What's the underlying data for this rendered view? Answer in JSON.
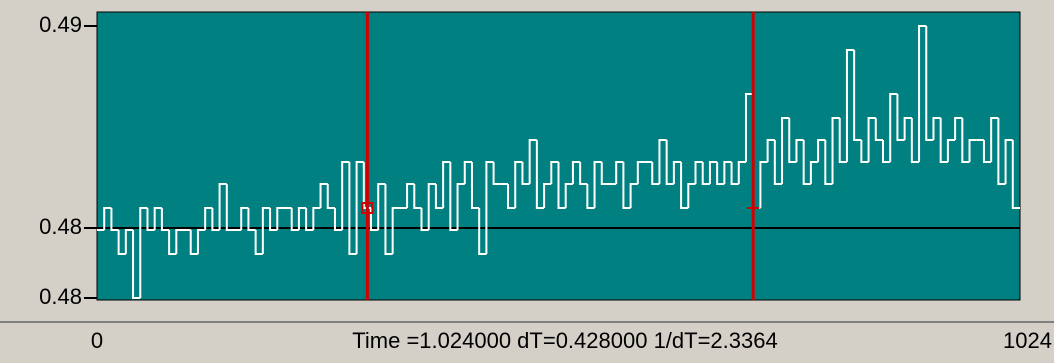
{
  "chart_data": {
    "type": "step",
    "status": "Time =1.024000 dT=0.428000  1/dT=2.3364",
    "series": [
      {
        "color": "#ffffff",
        "x": [
          0,
          8,
          16,
          24,
          32,
          40,
          48,
          56,
          64,
          72,
          80,
          88,
          96,
          104,
          112,
          120,
          128,
          136,
          144,
          152,
          160,
          168,
          176,
          184,
          192,
          200,
          208,
          216,
          224,
          232,
          240,
          248,
          256,
          264,
          272,
          280,
          288,
          296,
          304,
          312,
          320,
          328,
          336,
          344,
          352,
          360,
          368,
          376,
          384,
          392,
          400,
          408,
          416,
          424,
          432,
          440,
          448,
          456,
          464,
          472,
          480,
          488,
          496,
          504,
          512,
          520,
          528,
          536,
          544,
          552,
          560,
          568,
          576,
          584,
          592,
          600,
          608,
          616,
          624,
          632,
          640,
          648,
          656,
          664,
          672,
          680,
          688,
          696,
          704,
          712,
          720,
          728,
          736,
          744,
          752,
          760,
          768,
          776,
          784,
          792,
          800,
          808,
          816,
          824,
          832,
          840,
          848,
          856,
          864,
          872,
          880,
          888,
          896,
          904,
          912,
          920,
          928,
          936,
          944,
          952,
          960,
          968,
          976,
          984,
          992,
          1000,
          1008,
          1016
        ],
        "values": [
          0.4814,
          0.4825,
          0.4814,
          0.4802,
          0.4814,
          0.478,
          0.4825,
          0.4814,
          0.4825,
          0.4814,
          0.4802,
          0.4814,
          0.4814,
          0.4802,
          0.4814,
          0.4825,
          0.4814,
          0.4837,
          0.4814,
          0.4814,
          0.4825,
          0.4814,
          0.4802,
          0.4825,
          0.4814,
          0.4825,
          0.4825,
          0.4814,
          0.4825,
          0.4814,
          0.4825,
          0.4837,
          0.4825,
          0.4814,
          0.4848,
          0.4802,
          0.4848,
          0.4825,
          0.4814,
          0.4837,
          0.4802,
          0.4825,
          0.4825,
          0.4837,
          0.4825,
          0.4814,
          0.4837,
          0.4825,
          0.4848,
          0.4814,
          0.4837,
          0.4848,
          0.4825,
          0.4802,
          0.4848,
          0.4837,
          0.4837,
          0.4825,
          0.4848,
          0.4837,
          0.4859,
          0.4825,
          0.4837,
          0.4848,
          0.4825,
          0.4837,
          0.4848,
          0.4837,
          0.4825,
          0.4848,
          0.4837,
          0.4837,
          0.4848,
          0.4825,
          0.4837,
          0.4848,
          0.4848,
          0.4837,
          0.4859,
          0.4837,
          0.4848,
          0.4825,
          0.4837,
          0.4848,
          0.4837,
          0.4848,
          0.4837,
          0.4848,
          0.4837,
          0.4848,
          0.4882,
          0.4825,
          0.4848,
          0.4859,
          0.4837,
          0.487,
          0.4848,
          0.4859,
          0.4837,
          0.4848,
          0.4859,
          0.4837,
          0.487,
          0.4848,
          0.4904,
          0.4859,
          0.4848,
          0.487,
          0.4859,
          0.4848,
          0.4882,
          0.4859,
          0.487,
          0.4848,
          0.4916,
          0.4859,
          0.487,
          0.4848,
          0.4859,
          0.487,
          0.4848,
          0.4859,
          0.4859,
          0.4848,
          0.487,
          0.4837,
          0.4859,
          0.4825
        ]
      }
    ],
    "xlim": [
      0,
      1024
    ],
    "xticks": [
      0,
      1024
    ],
    "ylim": [
      0.4779,
      0.4923
    ],
    "yticks": [
      {
        "value": 0.4916,
        "label": "0.49"
      },
      {
        "value": 0.4815,
        "label": "0.48"
      },
      {
        "value": 0.478,
        "label": "0.48"
      }
    ],
    "cursors": [
      {
        "x": 300,
        "y": 0.4825,
        "marker": "square",
        "color": "#d00000"
      },
      {
        "x": 728,
        "y": 0.4825,
        "marker": "plus",
        "color": "#d00000"
      }
    ],
    "plot_color": "#008080"
  }
}
